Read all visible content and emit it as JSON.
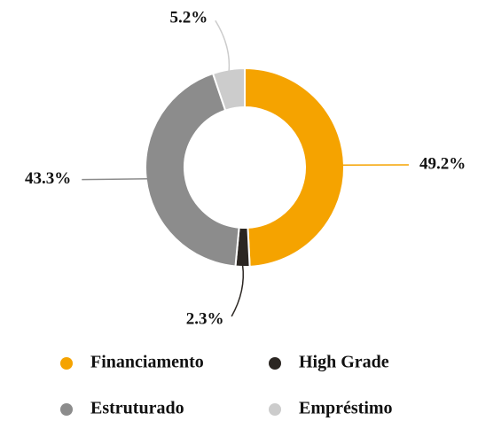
{
  "chart_data": {
    "type": "donut",
    "categories": [
      "Financiamento",
      "High Grade",
      "Estruturado",
      "Empréstimo"
    ],
    "values": [
      49.2,
      2.3,
      43.3,
      5.2
    ],
    "value_labels": [
      "49.2%",
      "2.3%",
      "43.3%",
      "5.2%"
    ],
    "colors": [
      "#f5a300",
      "#2b2622",
      "#8c8c8c",
      "#cccccc"
    ],
    "legend": "bottom"
  }
}
